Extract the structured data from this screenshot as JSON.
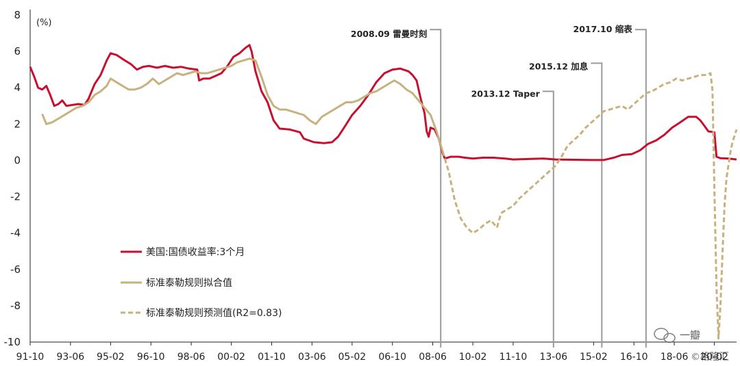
{
  "chart_data": {
    "type": "line",
    "y_unit_label": "(%)",
    "ylim": [
      -10,
      8
    ],
    "y_ticks": [
      8,
      6,
      4,
      2,
      0,
      -2,
      -4,
      -6,
      -8,
      -10
    ],
    "x_range": [
      1991.75,
      2021.0
    ],
    "x_ticks": [
      {
        "label": "91-10",
        "x": 1991.75
      },
      {
        "label": "93-06",
        "x": 1993.42
      },
      {
        "label": "95-02",
        "x": 1995.08
      },
      {
        "label": "96-10",
        "x": 1996.75
      },
      {
        "label": "98-06",
        "x": 1998.42
      },
      {
        "label": "00-02",
        "x": 2000.08
      },
      {
        "label": "01-10",
        "x": 2001.75
      },
      {
        "label": "03-06",
        "x": 2003.42
      },
      {
        "label": "05-02",
        "x": 2005.08
      },
      {
        "label": "06-10",
        "x": 2006.75
      },
      {
        "label": "08-06",
        "x": 2008.42
      },
      {
        "label": "10-02",
        "x": 2010.08
      },
      {
        "label": "11-10",
        "x": 2011.75
      },
      {
        "label": "13-06",
        "x": 2013.42
      },
      {
        "label": "15-02",
        "x": 2015.08
      },
      {
        "label": "16-10",
        "x": 2016.75
      },
      {
        "label": "18-06",
        "x": 2018.42
      },
      {
        "label": "20-02",
        "x": 2020.08
      }
    ],
    "grid": false,
    "legend_position": "bottom-left",
    "series": [
      {
        "name": "美国:国债收益率:3个月",
        "color": "#c8102e",
        "style": "solid",
        "points": [
          [
            1991.75,
            5.15
          ],
          [
            1991.92,
            4.6
          ],
          [
            1992.08,
            4.0
          ],
          [
            1992.25,
            3.9
          ],
          [
            1992.42,
            4.1
          ],
          [
            1992.58,
            3.6
          ],
          [
            1992.75,
            3.0
          ],
          [
            1992.92,
            3.1
          ],
          [
            1993.08,
            3.3
          ],
          [
            1993.25,
            3.0
          ],
          [
            1993.5,
            3.05
          ],
          [
            1993.75,
            3.1
          ],
          [
            1994.0,
            3.05
          ],
          [
            1994.17,
            3.4
          ],
          [
            1994.42,
            4.2
          ],
          [
            1994.67,
            4.7
          ],
          [
            1994.92,
            5.5
          ],
          [
            1995.08,
            5.9
          ],
          [
            1995.33,
            5.8
          ],
          [
            1995.67,
            5.5
          ],
          [
            1995.92,
            5.3
          ],
          [
            1996.17,
            5.0
          ],
          [
            1996.42,
            5.15
          ],
          [
            1996.67,
            5.2
          ],
          [
            1997.0,
            5.1
          ],
          [
            1997.33,
            5.2
          ],
          [
            1997.67,
            5.1
          ],
          [
            1998.0,
            5.15
          ],
          [
            1998.33,
            5.05
          ],
          [
            1998.67,
            5.0
          ],
          [
            1998.75,
            4.4
          ],
          [
            1998.92,
            4.5
          ],
          [
            1999.17,
            4.5
          ],
          [
            1999.42,
            4.65
          ],
          [
            1999.67,
            4.8
          ],
          [
            1999.92,
            5.2
          ],
          [
            2000.17,
            5.7
          ],
          [
            2000.42,
            5.9
          ],
          [
            2000.67,
            6.2
          ],
          [
            2000.83,
            6.35
          ],
          [
            2000.92,
            6.0
          ],
          [
            2001.08,
            4.9
          ],
          [
            2001.33,
            3.8
          ],
          [
            2001.58,
            3.2
          ],
          [
            2001.83,
            2.2
          ],
          [
            2002.08,
            1.75
          ],
          [
            2002.5,
            1.7
          ],
          [
            2002.92,
            1.55
          ],
          [
            2003.08,
            1.2
          ],
          [
            2003.5,
            1.0
          ],
          [
            2003.92,
            0.95
          ],
          [
            2004.25,
            1.0
          ],
          [
            2004.5,
            1.3
          ],
          [
            2004.75,
            1.8
          ],
          [
            2005.08,
            2.5
          ],
          [
            2005.42,
            3.0
          ],
          [
            2005.75,
            3.6
          ],
          [
            2006.08,
            4.3
          ],
          [
            2006.42,
            4.8
          ],
          [
            2006.75,
            5.0
          ],
          [
            2007.08,
            5.05
          ],
          [
            2007.42,
            4.9
          ],
          [
            2007.58,
            4.7
          ],
          [
            2007.75,
            4.4
          ],
          [
            2007.92,
            3.4
          ],
          [
            2008.08,
            2.6
          ],
          [
            2008.17,
            1.6
          ],
          [
            2008.25,
            1.3
          ],
          [
            2008.33,
            1.8
          ],
          [
            2008.5,
            1.7
          ],
          [
            2008.67,
            1.2
          ],
          [
            2008.83,
            0.4
          ],
          [
            2008.92,
            0.1
          ],
          [
            2009.17,
            0.2
          ],
          [
            2009.5,
            0.2
          ],
          [
            2009.75,
            0.15
          ],
          [
            2010.08,
            0.1
          ],
          [
            2010.5,
            0.15
          ],
          [
            2010.92,
            0.15
          ],
          [
            2011.42,
            0.1
          ],
          [
            2011.75,
            0.05
          ],
          [
            2012.5,
            0.08
          ],
          [
            2013.0,
            0.1
          ],
          [
            2013.5,
            0.05
          ],
          [
            2014.0,
            0.04
          ],
          [
            2014.5,
            0.03
          ],
          [
            2015.0,
            0.02
          ],
          [
            2015.5,
            0.02
          ],
          [
            2015.92,
            0.15
          ],
          [
            2016.25,
            0.3
          ],
          [
            2016.67,
            0.35
          ],
          [
            2017.0,
            0.55
          ],
          [
            2017.33,
            0.9
          ],
          [
            2017.67,
            1.1
          ],
          [
            2018.0,
            1.4
          ],
          [
            2018.33,
            1.8
          ],
          [
            2018.67,
            2.1
          ],
          [
            2019.0,
            2.4
          ],
          [
            2019.33,
            2.4
          ],
          [
            2019.5,
            2.2
          ],
          [
            2019.67,
            1.9
          ],
          [
            2019.83,
            1.6
          ],
          [
            2020.08,
            1.55
          ],
          [
            2020.17,
            0.2
          ],
          [
            2020.33,
            0.12
          ],
          [
            2020.67,
            0.1
          ],
          [
            2021.0,
            0.05
          ]
        ]
      },
      {
        "name": "标准泰勒规则拟合值",
        "color": "#c7b27e",
        "style": "solid",
        "points": [
          [
            1992.25,
            2.55
          ],
          [
            1992.42,
            2.0
          ],
          [
            1992.67,
            2.1
          ],
          [
            1992.92,
            2.3
          ],
          [
            1993.17,
            2.5
          ],
          [
            1993.42,
            2.7
          ],
          [
            1993.67,
            2.9
          ],
          [
            1993.92,
            3.0
          ],
          [
            1994.17,
            3.2
          ],
          [
            1994.42,
            3.6
          ],
          [
            1994.67,
            3.8
          ],
          [
            1994.92,
            4.1
          ],
          [
            1995.08,
            4.5
          ],
          [
            1995.33,
            4.3
          ],
          [
            1995.58,
            4.1
          ],
          [
            1995.83,
            3.9
          ],
          [
            1996.08,
            3.9
          ],
          [
            1996.33,
            4.0
          ],
          [
            1996.58,
            4.2
          ],
          [
            1996.83,
            4.5
          ],
          [
            1997.08,
            4.2
          ],
          [
            1997.33,
            4.4
          ],
          [
            1997.58,
            4.6
          ],
          [
            1997.83,
            4.8
          ],
          [
            1998.08,
            4.7
          ],
          [
            1998.33,
            4.8
          ],
          [
            1998.58,
            4.9
          ],
          [
            1998.83,
            4.8
          ],
          [
            1999.08,
            4.8
          ],
          [
            1999.33,
            4.9
          ],
          [
            1999.58,
            5.0
          ],
          [
            1999.83,
            5.1
          ],
          [
            2000.08,
            5.2
          ],
          [
            2000.33,
            5.4
          ],
          [
            2000.58,
            5.5
          ],
          [
            2000.83,
            5.6
          ],
          [
            2001.08,
            5.5
          ],
          [
            2001.33,
            4.6
          ],
          [
            2001.58,
            3.6
          ],
          [
            2001.83,
            3.0
          ],
          [
            2002.08,
            2.8
          ],
          [
            2002.33,
            2.8
          ],
          [
            2002.58,
            2.7
          ],
          [
            2002.83,
            2.6
          ],
          [
            2003.08,
            2.5
          ],
          [
            2003.33,
            2.2
          ],
          [
            2003.58,
            2.0
          ],
          [
            2003.83,
            2.4
          ],
          [
            2004.08,
            2.6
          ],
          [
            2004.33,
            2.8
          ],
          [
            2004.58,
            3.0
          ],
          [
            2004.83,
            3.2
          ],
          [
            2005.08,
            3.2
          ],
          [
            2005.33,
            3.3
          ],
          [
            2005.58,
            3.5
          ],
          [
            2005.83,
            3.7
          ],
          [
            2006.08,
            3.8
          ],
          [
            2006.33,
            4.0
          ],
          [
            2006.58,
            4.2
          ],
          [
            2006.83,
            4.4
          ],
          [
            2007.08,
            4.2
          ],
          [
            2007.33,
            3.9
          ],
          [
            2007.58,
            3.7
          ],
          [
            2007.83,
            3.3
          ],
          [
            2008.08,
            2.9
          ],
          [
            2008.33,
            2.5
          ],
          [
            2008.58,
            1.6
          ],
          [
            2008.83,
            0.5
          ]
        ]
      },
      {
        "name": "标准泰勒规则预测值(R2=0.83)",
        "color": "#c7b27e",
        "style": "dashed",
        "points": [
          [
            2008.83,
            0.5
          ],
          [
            2009.08,
            -0.6
          ],
          [
            2009.33,
            -2.2
          ],
          [
            2009.58,
            -3.2
          ],
          [
            2009.83,
            -3.7
          ],
          [
            2010.08,
            -4.0
          ],
          [
            2010.33,
            -3.8
          ],
          [
            2010.58,
            -3.5
          ],
          [
            2010.83,
            -3.3
          ],
          [
            2011.08,
            -3.7
          ],
          [
            2011.25,
            -2.9
          ],
          [
            2011.5,
            -2.7
          ],
          [
            2011.75,
            -2.5
          ],
          [
            2012.0,
            -2.1
          ],
          [
            2012.25,
            -1.8
          ],
          [
            2012.5,
            -1.5
          ],
          [
            2012.75,
            -1.2
          ],
          [
            2013.0,
            -0.9
          ],
          [
            2013.25,
            -0.6
          ],
          [
            2013.5,
            -0.3
          ],
          [
            2013.75,
            0.2
          ],
          [
            2014.0,
            0.8
          ],
          [
            2014.25,
            1.1
          ],
          [
            2014.5,
            1.4
          ],
          [
            2014.75,
            1.8
          ],
          [
            2015.0,
            2.1
          ],
          [
            2015.25,
            2.4
          ],
          [
            2015.5,
            2.7
          ],
          [
            2015.75,
            2.8
          ],
          [
            2016.0,
            2.9
          ],
          [
            2016.25,
            3.0
          ],
          [
            2016.5,
            2.8
          ],
          [
            2016.75,
            3.1
          ],
          [
            2017.0,
            3.4
          ],
          [
            2017.25,
            3.7
          ],
          [
            2017.5,
            3.8
          ],
          [
            2017.75,
            4.0
          ],
          [
            2018.0,
            4.2
          ],
          [
            2018.25,
            4.3
          ],
          [
            2018.5,
            4.5
          ],
          [
            2018.75,
            4.4
          ],
          [
            2019.0,
            4.5
          ],
          [
            2019.25,
            4.6
          ],
          [
            2019.5,
            4.7
          ],
          [
            2019.75,
            4.7
          ],
          [
            2019.92,
            4.8
          ],
          [
            2020.0,
            3.9
          ],
          [
            2020.08,
            -1.5
          ],
          [
            2020.17,
            -7.0
          ],
          [
            2020.25,
            -9.8
          ],
          [
            2020.33,
            -8.0
          ],
          [
            2020.42,
            -5.0
          ],
          [
            2020.5,
            -2.5
          ],
          [
            2020.58,
            -1.0
          ],
          [
            2020.67,
            -0.2
          ],
          [
            2020.75,
            0.5
          ],
          [
            2020.83,
            1.0
          ],
          [
            2021.0,
            1.7
          ]
        ]
      }
    ],
    "annotations": [
      {
        "label": "2008.09 雷曼时刻",
        "x": 2008.75,
        "text_y": 6.95,
        "line_top": 7.2
      },
      {
        "label": "2013.12 Taper",
        "x": 2013.42,
        "text_y": 3.65,
        "line_top": 3.8
      },
      {
        "label": "2015.12 加息",
        "x": 2015.42,
        "text_y": 5.15,
        "line_top": 5.35
      },
      {
        "label": "2017.10 缩表",
        "x": 2017.25,
        "text_y": 7.2,
        "line_top": 7.2
      }
    ]
  },
  "watermark": {
    "icon": "wechat-icon",
    "text_main": "一瓣",
    "text_sub": "©格隆汇"
  }
}
